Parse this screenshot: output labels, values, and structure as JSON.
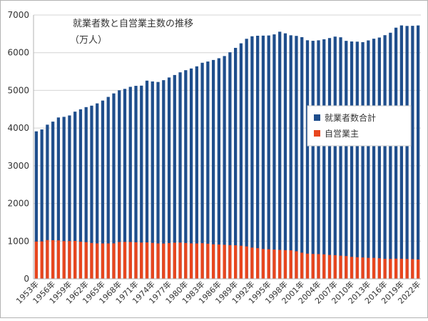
{
  "chart_data": {
    "type": "bar",
    "title": "就業者数と自営業主数の推移",
    "subtitle": "（万人）",
    "xlabel": "",
    "ylabel": "",
    "ylim": [
      0,
      7000
    ],
    "yticks": [
      0,
      1000,
      2000,
      3000,
      4000,
      5000,
      6000,
      7000
    ],
    "grid": true,
    "legend_position": "right",
    "x": [
      1953,
      1954,
      1955,
      1956,
      1957,
      1958,
      1959,
      1960,
      1961,
      1962,
      1963,
      1964,
      1965,
      1966,
      1967,
      1968,
      1969,
      1970,
      1971,
      1972,
      1973,
      1974,
      1975,
      1976,
      1977,
      1978,
      1979,
      1980,
      1981,
      1982,
      1983,
      1984,
      1985,
      1986,
      1987,
      1988,
      1989,
      1990,
      1991,
      1992,
      1993,
      1994,
      1995,
      1996,
      1997,
      1998,
      1999,
      2000,
      2001,
      2002,
      2003,
      2004,
      2005,
      2006,
      2007,
      2008,
      2009,
      2010,
      2011,
      2012,
      2013,
      2014,
      2015,
      2016,
      2017,
      2018,
      2019,
      2020,
      2021,
      2022
    ],
    "x_tick_labels": [
      "1953年",
      "1956年",
      "1959年",
      "1962年",
      "1965年",
      "1968年",
      "1971年",
      "1974年",
      "1977年",
      "1980年",
      "1983年",
      "1986年",
      "1989年",
      "1992年",
      "1995年",
      "1998年",
      "2001年",
      "2004年",
      "2007年",
      "2010年",
      "2013年",
      "2016年",
      "2019年",
      "2022年"
    ],
    "series": [
      {
        "name": "就業者数合計",
        "color": "#1f4e8c",
        "values": [
          3913,
          3963,
          4090,
          4171,
          4281,
          4298,
          4335,
          4436,
          4498,
          4556,
          4595,
          4655,
          4730,
          4827,
          4920,
          5002,
          5040,
          5094,
          5121,
          5126,
          5259,
          5237,
          5223,
          5271,
          5342,
          5408,
          5479,
          5536,
          5581,
          5638,
          5733,
          5766,
          5807,
          5853,
          5911,
          6011,
          6128,
          6249,
          6369,
          6436,
          6450,
          6453,
          6457,
          6486,
          6557,
          6514,
          6462,
          6446,
          6412,
          6330,
          6316,
          6329,
          6356,
          6389,
          6427,
          6409,
          6314,
          6298,
          6293,
          6280,
          6326,
          6371,
          6402,
          6465,
          6530,
          6664,
          6724,
          6710,
          6713,
          6723
        ]
      },
      {
        "name": "自営業主",
        "color": "#e8461e",
        "values": [
          989,
          993,
          1028,
          1025,
          1020,
          1001,
          1002,
          1006,
          984,
          973,
          951,
          940,
          939,
          939,
          940,
          977,
          979,
          977,
          969,
          961,
          966,
          953,
          939,
          936,
          949,
          958,
          961,
          951,
          941,
          938,
          946,
          931,
          916,
          910,
          903,
          894,
          890,
          878,
          860,
          828,
          813,
          791,
          784,
          776,
          768,
          761,
          756,
          731,
          693,
          668,
          660,
          656,
          650,
          633,
          628,
          614,
          605,
          582,
          573,
          566,
          556,
          556,
          546,
          530,
          529,
          535,
          532,
          527,
          523,
          514
        ]
      }
    ]
  }
}
